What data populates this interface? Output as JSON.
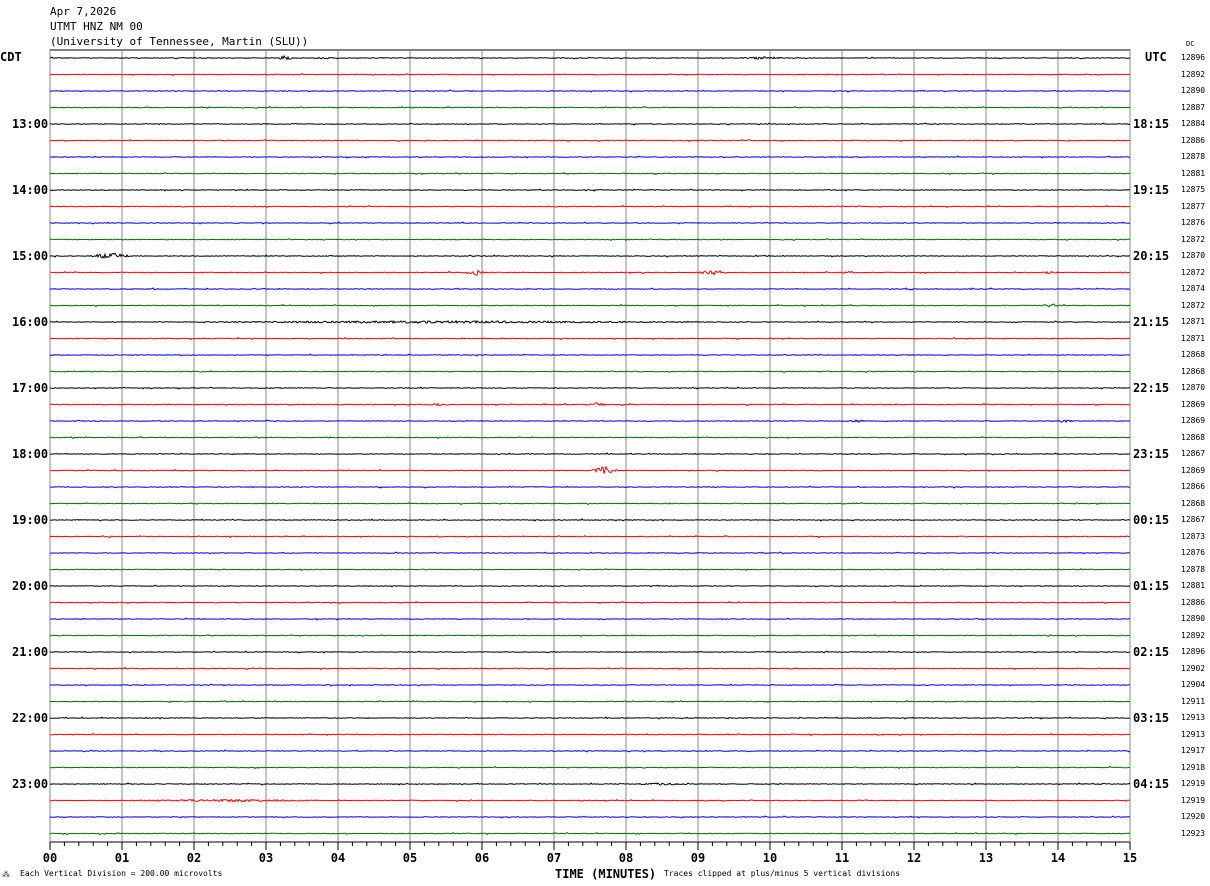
{
  "header": {
    "date": "Apr 7,2026",
    "station": "UTMT HNZ NM 00",
    "network": "(University of Tennessee, Martin (SLU))"
  },
  "left_tz": "CDT",
  "right_tz": "UTC",
  "dc_label": "DC",
  "footer": {
    "scale": "Each Vertical Division =  200.00 microvolts",
    "xlabel": "TIME (MINUTES)",
    "clip": "Traces clipped at plus/minus 5 vertical divisions"
  },
  "chart_data": {
    "type": "line",
    "title": "UTMT HNZ NM 00",
    "xlabel": "TIME (MINUTES)",
    "xlim": [
      0,
      15
    ],
    "x_ticks": [
      "00",
      "01",
      "02",
      "03",
      "04",
      "05",
      "06",
      "07",
      "08",
      "09",
      "10",
      "11",
      "12",
      "13",
      "14",
      "15"
    ],
    "trace_colors": [
      "#000000",
      "#ff0000",
      "#0000ff",
      "#007000"
    ],
    "left_labels": [
      "13:00",
      "14:00",
      "15:00",
      "16:00",
      "17:00",
      "18:00",
      "19:00",
      "20:00",
      "21:00",
      "22:00",
      "23:00"
    ],
    "right_labels": [
      "18:15",
      "19:15",
      "20:15",
      "21:15",
      "22:15",
      "23:15",
      "00:15",
      "01:15",
      "02:15",
      "03:15",
      "04:15"
    ],
    "dc_values": [
      "12896",
      "12892",
      "12890",
      "12887",
      "12884",
      "12886",
      "12878",
      "12881",
      "12875",
      "12877",
      "12876",
      "12872",
      "12870",
      "12872",
      "12874",
      "12872",
      "12871",
      "12871",
      "12868",
      "12868",
      "12870",
      "12869",
      "12869",
      "12868",
      "12867",
      "12869",
      "12866",
      "12868",
      "12867",
      "12873",
      "12876",
      "12878",
      "12881",
      "12886",
      "12890",
      "12892",
      "12896",
      "12902",
      "12904",
      "12911",
      "12913",
      "12913",
      "12917",
      "12918",
      "12919",
      "12919",
      "12920",
      "12923"
    ],
    "events": [
      {
        "row": 0,
        "minute": 3.25,
        "amp": 4,
        "dur": 0.3
      },
      {
        "row": 0,
        "minute": 3.8,
        "amp": 2,
        "dur": 0.3
      },
      {
        "row": 0,
        "minute": 9.9,
        "amp": 2,
        "dur": 0.7
      },
      {
        "row": 12,
        "minute": 0.85,
        "amp": 6,
        "dur": 0.6
      },
      {
        "row": 13,
        "minute": 5.9,
        "amp": 6,
        "dur": 0.3
      },
      {
        "row": 13,
        "minute": 9.2,
        "amp": 6,
        "dur": 0.4
      },
      {
        "row": 13,
        "minute": 11.1,
        "amp": 2,
        "dur": 0.3
      },
      {
        "row": 13,
        "minute": 13.9,
        "amp": 3,
        "dur": 0.3
      },
      {
        "row": 15,
        "minute": 13.9,
        "amp": 3,
        "dur": 0.3
      },
      {
        "row": 16,
        "minute": 5.5,
        "amp": 2,
        "dur": 8
      },
      {
        "row": 21,
        "minute": 5.4,
        "amp": 2,
        "dur": 0.4
      },
      {
        "row": 21,
        "minute": 7.6,
        "amp": 3,
        "dur": 0.3
      },
      {
        "row": 22,
        "minute": 11.2,
        "amp": 3,
        "dur": 0.3
      },
      {
        "row": 22,
        "minute": 14.1,
        "amp": 3,
        "dur": 0.3
      },
      {
        "row": 25,
        "minute": 7.7,
        "amp": 8,
        "dur": 0.4
      },
      {
        "row": 44,
        "minute": 8.5,
        "amp": 2,
        "dur": 1
      },
      {
        "row": 45,
        "minute": 2.5,
        "amp": 2,
        "dur": 3
      }
    ]
  }
}
